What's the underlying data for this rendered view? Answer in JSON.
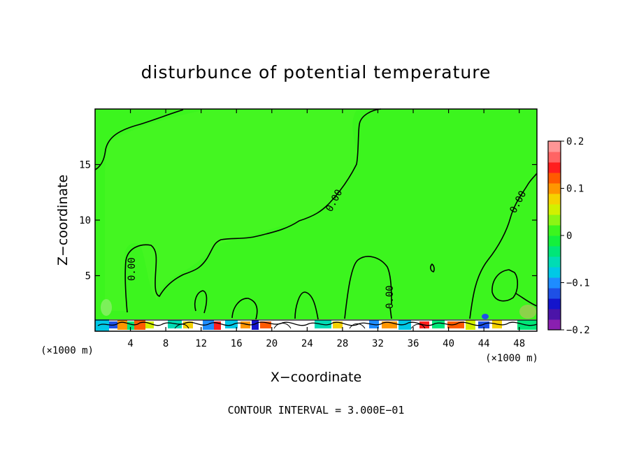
{
  "chart_data": {
    "type": "heatmap",
    "title": "disturbunce of potential temperature",
    "xlabel": "X−coordinate",
    "ylabel": "Z−coordinate",
    "x_unit": "(×1000 m)",
    "x_unit_right": "(×1000 m)",
    "xlim": [
      0,
      50
    ],
    "ylim": [
      0,
      20
    ],
    "x_ticks": [
      4,
      8,
      12,
      16,
      20,
      24,
      28,
      32,
      36,
      40,
      44,
      48
    ],
    "y_ticks": [
      5,
      10,
      15
    ],
    "contour_label": "0.00",
    "contour_interval_text": "CONTOUR INTERVAL = 3.000E−01",
    "colorbar": {
      "range": [
        -0.2,
        0.2
      ],
      "tick_values": [
        0.2,
        0.1,
        0,
        -0.1,
        -0.2
      ],
      "tick_labels": [
        "0.2",
        "0.1",
        "0",
        "−0.1",
        "−0.2"
      ],
      "colors": [
        "#8a1fb0",
        "#4b14a8",
        "#1414cc",
        "#1e50e6",
        "#1e8cff",
        "#00c8e6",
        "#00dcb4",
        "#00e678",
        "#14f03c",
        "#3cf51e",
        "#8cf514",
        "#d2f000",
        "#f5d200",
        "#ff9600",
        "#ff5a00",
        "#ff1e1e",
        "#ff6464",
        "#ff9696"
      ]
    },
    "field": "near-zero everywhere above 1 km (green); strong small-scale perturbations within the lowest ~1 km"
  }
}
